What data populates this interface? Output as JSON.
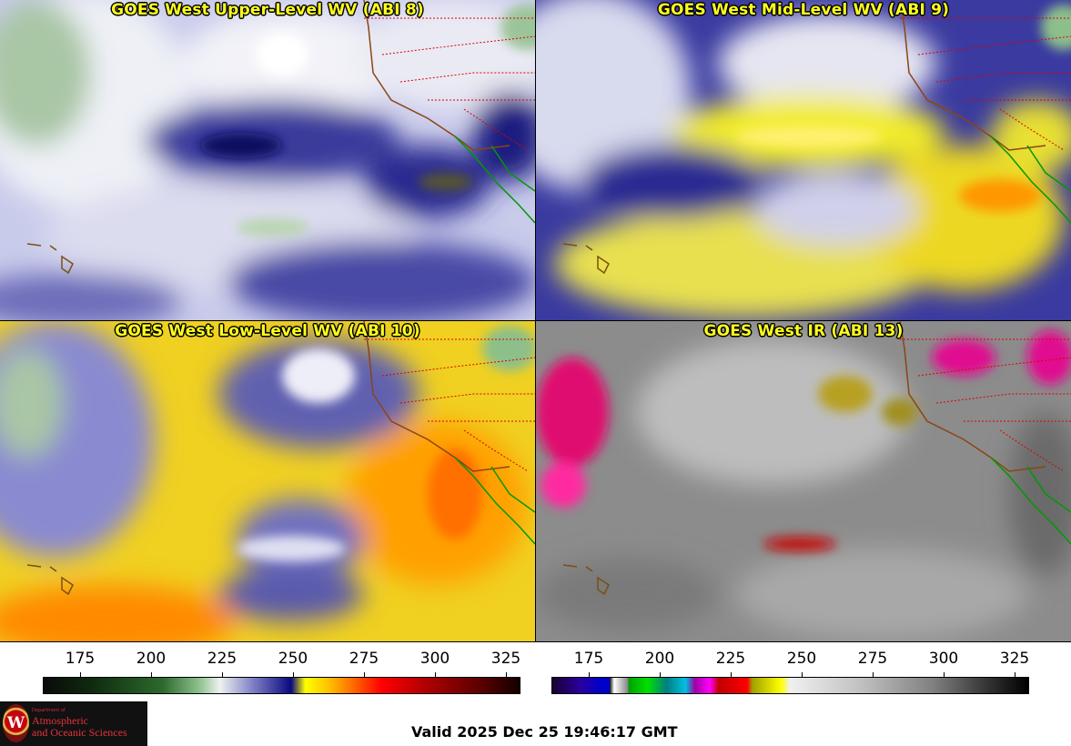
{
  "panels": {
    "upper": {
      "title": "GOES West Upper-Level WV (ABI 8)"
    },
    "mid": {
      "title": "GOES West Mid-Level WV (ABI 9)"
    },
    "low": {
      "title": "GOES West Low-Level WV (ABI 10)"
    },
    "ir": {
      "title": "GOES West IR (ABI 13)"
    }
  },
  "colorbars": {
    "wv_ticks": [
      "175",
      "200",
      "225",
      "250",
      "275",
      "300",
      "325"
    ],
    "ir_ticks": [
      "175",
      "200",
      "225",
      "250",
      "275",
      "300",
      "325"
    ]
  },
  "logo": {
    "dept": "Department of",
    "line1": "Atmospheric",
    "line2": "and Oceanic Sciences",
    "seal": "W"
  },
  "valid_time": "Valid 2025 Dec 25 19:46:17 GMT",
  "colors": {
    "title_text": "#ffff1e",
    "wv_dry": "#ffff00",
    "wv_moist": "#0a0a80",
    "state_lines": "#cc0000",
    "coast_lines": "#8b4513",
    "mexico_lines": "#009900"
  }
}
